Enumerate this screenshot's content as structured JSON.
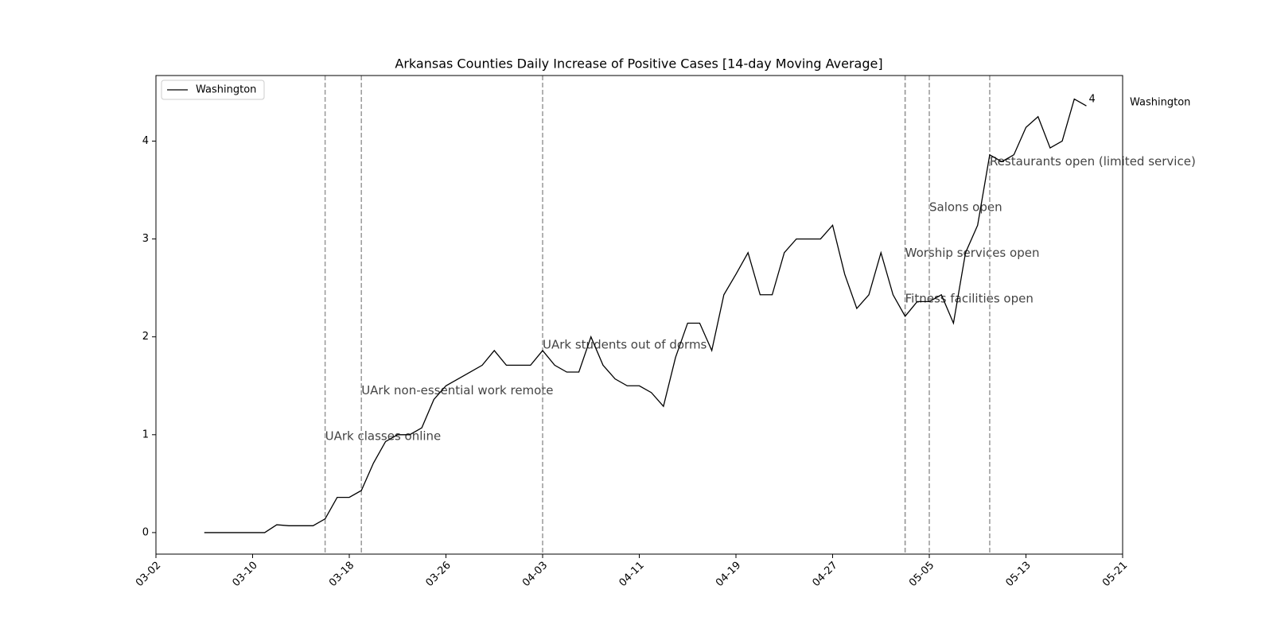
{
  "chart_data": {
    "type": "line",
    "title": "Arkansas Counties Daily Increase of Positive Cases [14-day Moving Average]",
    "x": [
      "03-06",
      "03-07",
      "03-08",
      "03-09",
      "03-10",
      "03-11",
      "03-12",
      "03-13",
      "03-14",
      "03-15",
      "03-16",
      "03-17",
      "03-18",
      "03-19",
      "03-20",
      "03-21",
      "03-22",
      "03-23",
      "03-24",
      "03-25",
      "03-26",
      "03-27",
      "03-28",
      "03-29",
      "03-30",
      "03-31",
      "04-01",
      "04-02",
      "04-03",
      "04-04",
      "04-05",
      "04-06",
      "04-07",
      "04-08",
      "04-09",
      "04-10",
      "04-11",
      "04-12",
      "04-13",
      "04-14",
      "04-15",
      "04-16",
      "04-17",
      "04-18",
      "04-19",
      "04-20",
      "04-21",
      "04-22",
      "04-23",
      "04-24",
      "04-25",
      "04-26",
      "04-27",
      "04-28",
      "04-29",
      "04-30",
      "05-01",
      "05-02",
      "05-03",
      "05-04",
      "05-05",
      "05-06",
      "05-07",
      "05-08",
      "05-09",
      "05-10",
      "05-11",
      "05-12",
      "05-13",
      "05-14",
      "05-15",
      "05-16",
      "05-17",
      "05-18"
    ],
    "series": [
      {
        "name": "Washington",
        "color": "#000000",
        "values": [
          0,
          0,
          0,
          0,
          0,
          0,
          0.08,
          0.07,
          0.07,
          0.07,
          0.14,
          0.36,
          0.36,
          0.43,
          0.71,
          0.93,
          1.0,
          1.0,
          1.07,
          1.36,
          1.5,
          1.57,
          1.64,
          1.71,
          1.86,
          1.71,
          1.71,
          1.71,
          1.86,
          1.71,
          1.64,
          1.64,
          2.0,
          1.71,
          1.57,
          1.5,
          1.5,
          1.43,
          1.29,
          1.79,
          2.14,
          2.14,
          1.86,
          2.43,
          2.64,
          2.86,
          2.43,
          2.43,
          2.86,
          3.0,
          3.0,
          3.0,
          3.14,
          2.64,
          2.29,
          2.43,
          2.86,
          2.43,
          2.21,
          2.36,
          2.36,
          2.43,
          2.14,
          2.86,
          3.14,
          3.86,
          3.79,
          3.86,
          4.14,
          4.25,
          3.93,
          4.0,
          4.43,
          4.36
        ],
        "end_label": "4"
      }
    ],
    "events": [
      {
        "date": "03-16",
        "label": "UArk classes online"
      },
      {
        "date": "03-19",
        "label": "UArk non-essential work remote"
      },
      {
        "date": "04-03",
        "label": "UArk students out of dorms"
      },
      {
        "date": "05-03",
        "label": "Fitness facilities open"
      },
      {
        "date": "05-03",
        "label": "Worship services open"
      },
      {
        "date": "05-05",
        "label": "Salons open"
      },
      {
        "date": "05-10",
        "label": "Restaurants open (limited service)"
      }
    ],
    "xlim": [
      "03-02",
      "05-21"
    ],
    "xticks": [
      "03-02",
      "03-10",
      "03-18",
      "03-26",
      "04-03",
      "04-11",
      "04-19",
      "04-27",
      "05-05",
      "05-13",
      "05-21"
    ],
    "ylim": [
      -0.22,
      4.67
    ],
    "yticks": [
      0,
      1,
      2,
      3,
      4
    ],
    "legend": "upper left"
  }
}
